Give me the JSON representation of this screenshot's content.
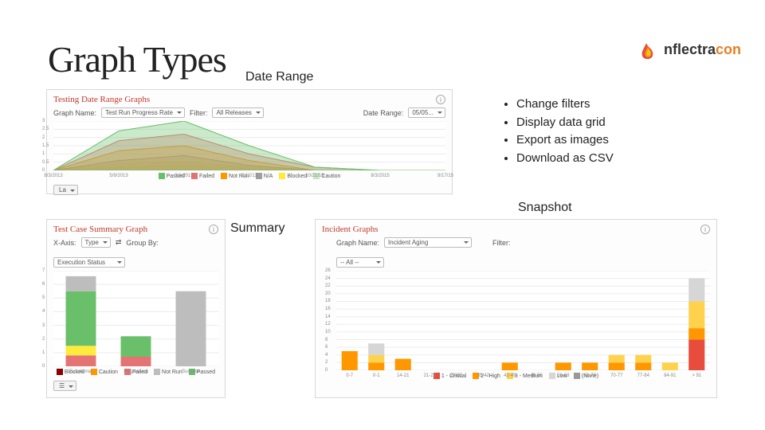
{
  "title": "Graph Types",
  "logo": {
    "text1": "nflectra",
    "text2": "con",
    "flame_colors": [
      "#e74c3c",
      "#f39c12",
      "#f1c40f"
    ]
  },
  "labels": {
    "date_range": "Date Range",
    "snapshot": "Snapshot",
    "summary": "Summary"
  },
  "bullets": [
    "Change filters",
    "Display data grid",
    "Export as images",
    "Download as CSV"
  ],
  "panel_date": {
    "title": "Testing Date Range Graphs",
    "graph_name_label": "Graph Name:",
    "graph_name_value": "Test Run  Progress Rate",
    "filter_label": "Filter:",
    "filter_value": "All Releases",
    "date_range_label": "Date Range:",
    "date_range_value": "05/05...",
    "ymax": 3,
    "ystep": 0.5,
    "x_labels": [
      "8/3/2013",
      "5/9/2013",
      "9/1/2013",
      "6/12/13",
      "10/21/13",
      "8/3/2015",
      "9/17/15"
    ],
    "series": [
      {
        "name": "Passed",
        "color": "#6abf6a",
        "pts": [
          0,
          2.4,
          3,
          1.5,
          0.2,
          0,
          0
        ]
      },
      {
        "name": "Failed",
        "color": "#e57373",
        "pts": [
          0,
          1.8,
          2.2,
          1.0,
          0.2,
          0,
          0
        ]
      },
      {
        "name": "Not Run",
        "color": "#ff9800",
        "pts": [
          0,
          1.2,
          1.5,
          0.6,
          0,
          0,
          0
        ]
      },
      {
        "name": "N/A",
        "color": "#9e9e9e",
        "pts": [
          0,
          0.6,
          0.9,
          0.3,
          0,
          0,
          0
        ]
      },
      {
        "name": "Blocked",
        "color": "#ffeb3b",
        "pts": [
          0,
          0.4,
          0.5,
          0.2,
          0,
          0,
          0
        ]
      },
      {
        "name": "Caution",
        "color": "#c8e6c9",
        "pts": [
          0,
          0.2,
          0.3,
          0.1,
          0,
          0,
          0
        ]
      }
    ],
    "chart_bg": "#ffffff",
    "grid": "#ececec",
    "footer_btn": "La"
  },
  "panel_summary": {
    "title": "Test Case Summary Graph",
    "xaxis_label": "X-Axis:",
    "xaxis_value": "Type",
    "groupby_label": "Group By:",
    "groupby_value": "Execution Status",
    "swap_icon": "⇄",
    "ymax": 7,
    "ystep": 1,
    "categories": [
      "Functional",
      "Regression",
      "Success"
    ],
    "stacks": {
      "Functional": [
        {
          "v": 0.8,
          "c": "#e57373"
        },
        {
          "v": 0.7,
          "c": "#ffeb3b"
        },
        {
          "v": 4.0,
          "c": "#6abf6a"
        },
        {
          "v": 1.1,
          "c": "#bdbdbd"
        }
      ],
      "Regression": [
        {
          "v": 0.7,
          "c": "#e57373"
        },
        {
          "v": 1.5,
          "c": "#6abf6a"
        }
      ],
      "Success": [
        {
          "v": 5.5,
          "c": "#bdbdbd"
        }
      ]
    },
    "legend": [
      {
        "name": "Blocked",
        "c": "#8b0000"
      },
      {
        "name": "Caution",
        "c": "#ff9800"
      },
      {
        "name": "Failed",
        "c": "#e57373"
      },
      {
        "name": "Not Run",
        "c": "#bdbdbd"
      },
      {
        "name": "Passed",
        "c": "#6abf6a"
      }
    ],
    "chart_bg": "#ffffff",
    "grid": "#ececec",
    "footer_btn": "☰"
  },
  "panel_snapshot": {
    "title": "Incident Graphs",
    "graph_name_label": "Graph Name:",
    "graph_name_value": "Incident Aging",
    "filter_label": "Filter:",
    "filter_value": "-- All --",
    "ymax": 26,
    "ystep": 2,
    "categories": [
      "0-7",
      "0-1",
      "14-21",
      "21-28",
      "28-35",
      "35-42",
      "42-49",
      "48-56",
      "56-63",
      "63-70",
      "70-77",
      "77-84",
      "84-91",
      "> 91"
    ],
    "stacks": [
      [
        {
          "v": 5,
          "c": "#ff9800"
        }
      ],
      [
        {
          "v": 2,
          "c": "#ff9800"
        },
        {
          "v": 2,
          "c": "#ffd24d"
        },
        {
          "v": 3,
          "c": "#d6d6d6"
        }
      ],
      [
        {
          "v": 3,
          "c": "#ff9800"
        }
      ],
      [],
      [],
      [],
      [
        {
          "v": 2,
          "c": "#ff9800"
        }
      ],
      [],
      [
        {
          "v": 2,
          "c": "#ff9800"
        }
      ],
      [
        {
          "v": 2,
          "c": "#ff9800"
        }
      ],
      [
        {
          "v": 2,
          "c": "#ff9800"
        },
        {
          "v": 2,
          "c": "#ffd24d"
        }
      ],
      [
        {
          "v": 2,
          "c": "#ff9800"
        },
        {
          "v": 2,
          "c": "#ffd24d"
        }
      ],
      [
        {
          "v": 2,
          "c": "#ffd24d"
        }
      ],
      [
        {
          "v": 8,
          "c": "#e74c3c"
        },
        {
          "v": 3,
          "c": "#ff9800"
        },
        {
          "v": 7,
          "c": "#ffd24d"
        },
        {
          "v": 6,
          "c": "#d6d6d6"
        }
      ]
    ],
    "legend": [
      {
        "name": "1 - Critical",
        "c": "#e74c3c"
      },
      {
        "name": "2 - High",
        "c": "#ff9800"
      },
      {
        "name": "3 - Medium",
        "c": "#ffd24d"
      },
      {
        "name": "Low",
        "c": "#d6d6d6"
      },
      {
        "name": "(None)",
        "c": "#999999"
      }
    ],
    "chart_bg": "#ffffff",
    "grid": "#ececec"
  }
}
